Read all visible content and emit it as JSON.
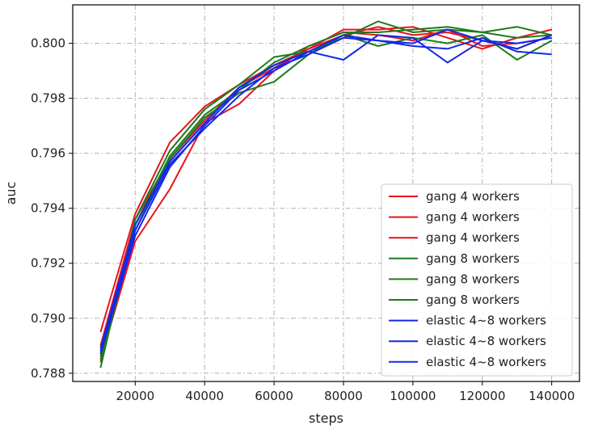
{
  "chart_data": {
    "type": "line",
    "title": "",
    "xlabel": "steps",
    "ylabel": "auc",
    "xlim": [
      2000,
      148000
    ],
    "ylim": [
      0.7877,
      0.8014
    ],
    "xticks": [
      20000,
      40000,
      60000,
      80000,
      100000,
      120000,
      140000
    ],
    "xtick_labels": [
      "20000",
      "40000",
      "60000",
      "80000",
      "100000",
      "120000",
      "140000"
    ],
    "yticks": [
      0.788,
      0.79,
      0.792,
      0.794,
      0.796,
      0.798,
      0.8
    ],
    "ytick_labels": [
      "0.788",
      "0.790",
      "0.792",
      "0.794",
      "0.796",
      "0.798",
      "0.800"
    ],
    "grid": true,
    "legend_position": "bottom-right",
    "x": [
      10000,
      20000,
      30000,
      40000,
      50000,
      60000,
      70000,
      80000,
      90000,
      100000,
      110000,
      120000,
      130000,
      140000
    ],
    "series": [
      {
        "name": "gang 4 workers",
        "color": "#e8141c",
        "values": [
          0.7895,
          0.7938,
          0.7964,
          0.7977,
          0.7985,
          0.7992,
          0.7998,
          0.8005,
          0.8005,
          0.8006,
          0.8002,
          0.7998,
          0.8002,
          0.8005
        ]
      },
      {
        "name": "gang 4 workers",
        "color": "#e8141c",
        "values": [
          0.7885,
          0.7928,
          0.7947,
          0.7971,
          0.7978,
          0.799,
          0.7999,
          0.8004,
          0.8003,
          0.8001,
          0.8005,
          0.7999,
          0.8,
          0.8002
        ]
      },
      {
        "name": "gang 4 workers",
        "color": "#e8141c",
        "values": [
          0.789,
          0.7936,
          0.7958,
          0.7972,
          0.7984,
          0.7991,
          0.7998,
          0.8003,
          0.8006,
          0.8003,
          0.8004,
          0.8001,
          0.7998,
          0.8003
        ]
      },
      {
        "name": "gang 8 workers",
        "color": "#1e7a1e",
        "values": [
          0.7882,
          0.7936,
          0.7961,
          0.7976,
          0.7985,
          0.7995,
          0.7997,
          0.8002,
          0.8008,
          0.8004,
          0.8005,
          0.8004,
          0.8006,
          0.8003
        ]
      },
      {
        "name": "gang 8 workers",
        "color": "#1e7a1e",
        "values": [
          0.7884,
          0.7932,
          0.7958,
          0.7973,
          0.7982,
          0.7986,
          0.7996,
          0.8003,
          0.7999,
          0.8002,
          0.8,
          0.8003,
          0.7994,
          0.8001
        ]
      },
      {
        "name": "gang 8 workers",
        "color": "#1e7a1e",
        "values": [
          0.7886,
          0.7934,
          0.7959,
          0.7974,
          0.7983,
          0.7993,
          0.7999,
          0.8004,
          0.8004,
          0.8005,
          0.8006,
          0.8004,
          0.8002,
          0.8003
        ]
      },
      {
        "name": "elastic 4~8 workers",
        "color": "#1428e6",
        "values": [
          0.7889,
          0.7934,
          0.7957,
          0.7971,
          0.7984,
          0.7992,
          0.7997,
          0.7994,
          0.8003,
          0.8002,
          0.7993,
          0.8001,
          0.7998,
          0.8003
        ]
      },
      {
        "name": "elastic 4~8 workers",
        "color": "#1428e6",
        "values": [
          0.7887,
          0.793,
          0.7955,
          0.797,
          0.7983,
          0.799,
          0.7997,
          0.8003,
          0.8001,
          0.7999,
          0.7998,
          0.8002,
          0.7997,
          0.7996
        ]
      },
      {
        "name": "elastic 4~8 workers",
        "color": "#1428e6",
        "values": [
          0.7888,
          0.7932,
          0.7956,
          0.7969,
          0.7981,
          0.7991,
          0.7996,
          0.8002,
          0.8001,
          0.8,
          0.8005,
          0.8001,
          0.8,
          0.8002
        ]
      }
    ]
  }
}
